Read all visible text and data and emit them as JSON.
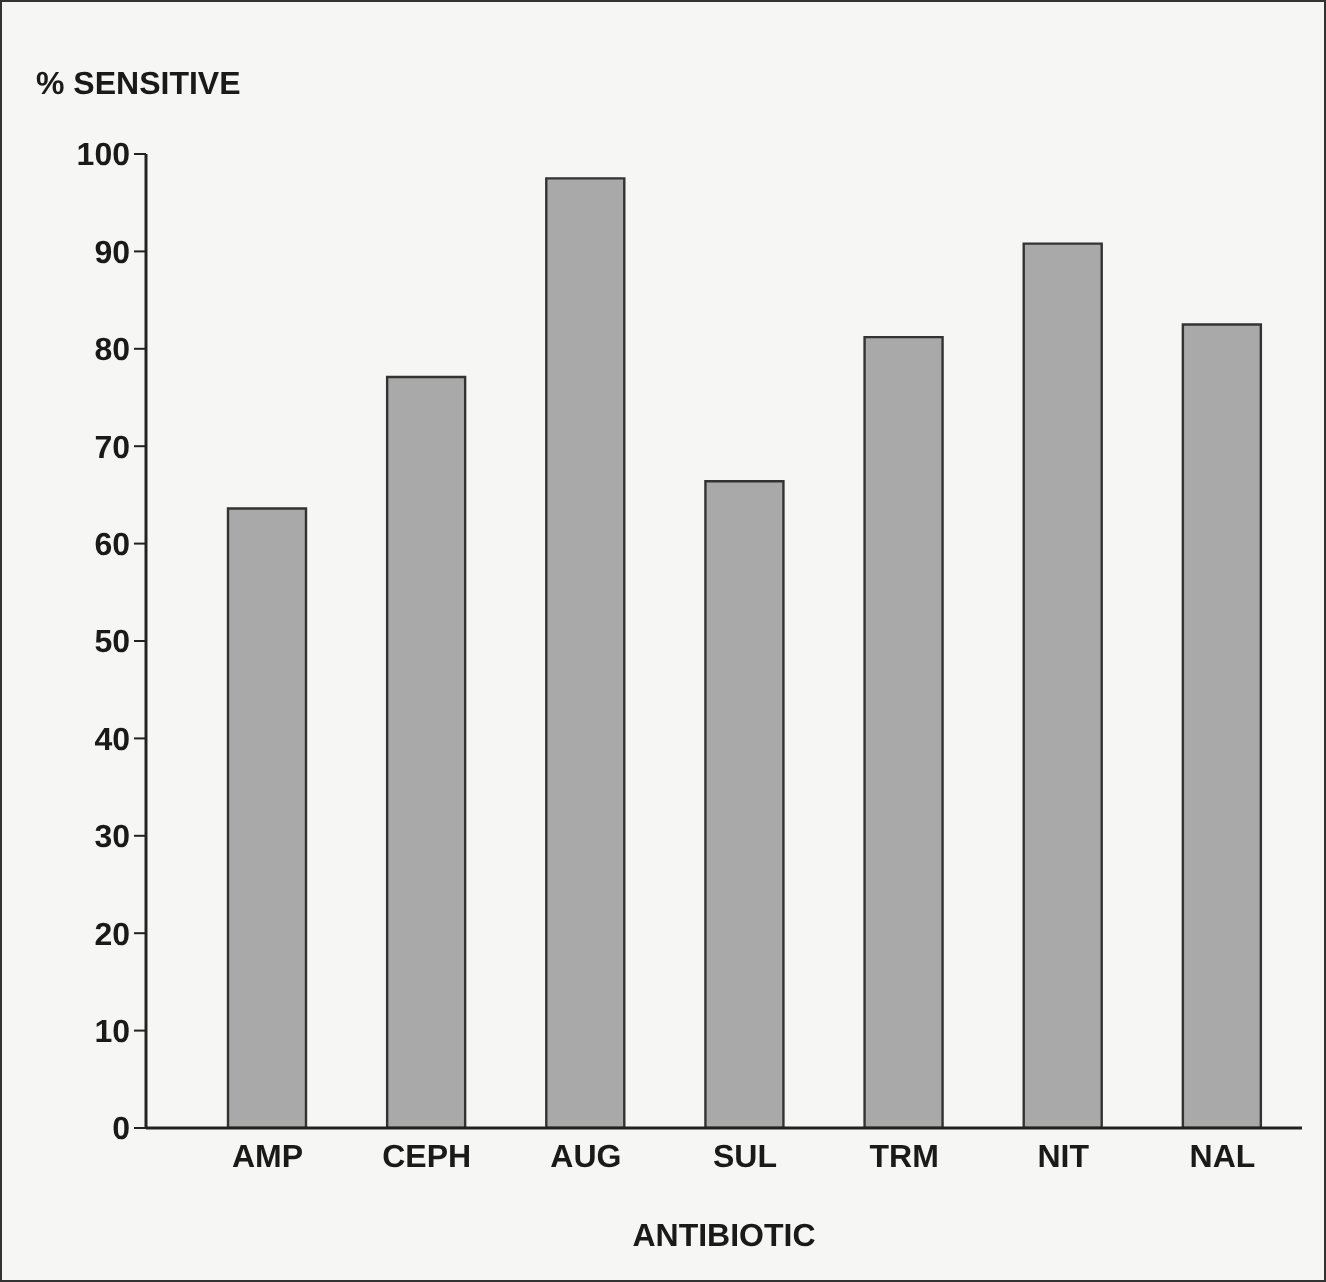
{
  "chart_data": {
    "type": "bar",
    "ylabel": "% SENSITIVE",
    "xlabel": "ANTIBIOTIC",
    "categories": [
      "AMP",
      "CEPH",
      "AUG",
      "SUL",
      "TRM",
      "NIT",
      "NAL"
    ],
    "values": [
      63.6,
      77.1,
      97.5,
      66.4,
      81.2,
      90.8,
      82.5
    ],
    "color": "#a9a9a9",
    "ylim": [
      0,
      100
    ],
    "yticks": [
      0,
      10,
      20,
      30,
      40,
      50,
      60,
      70,
      80,
      90,
      100
    ],
    "grid": false,
    "legend": false
  }
}
